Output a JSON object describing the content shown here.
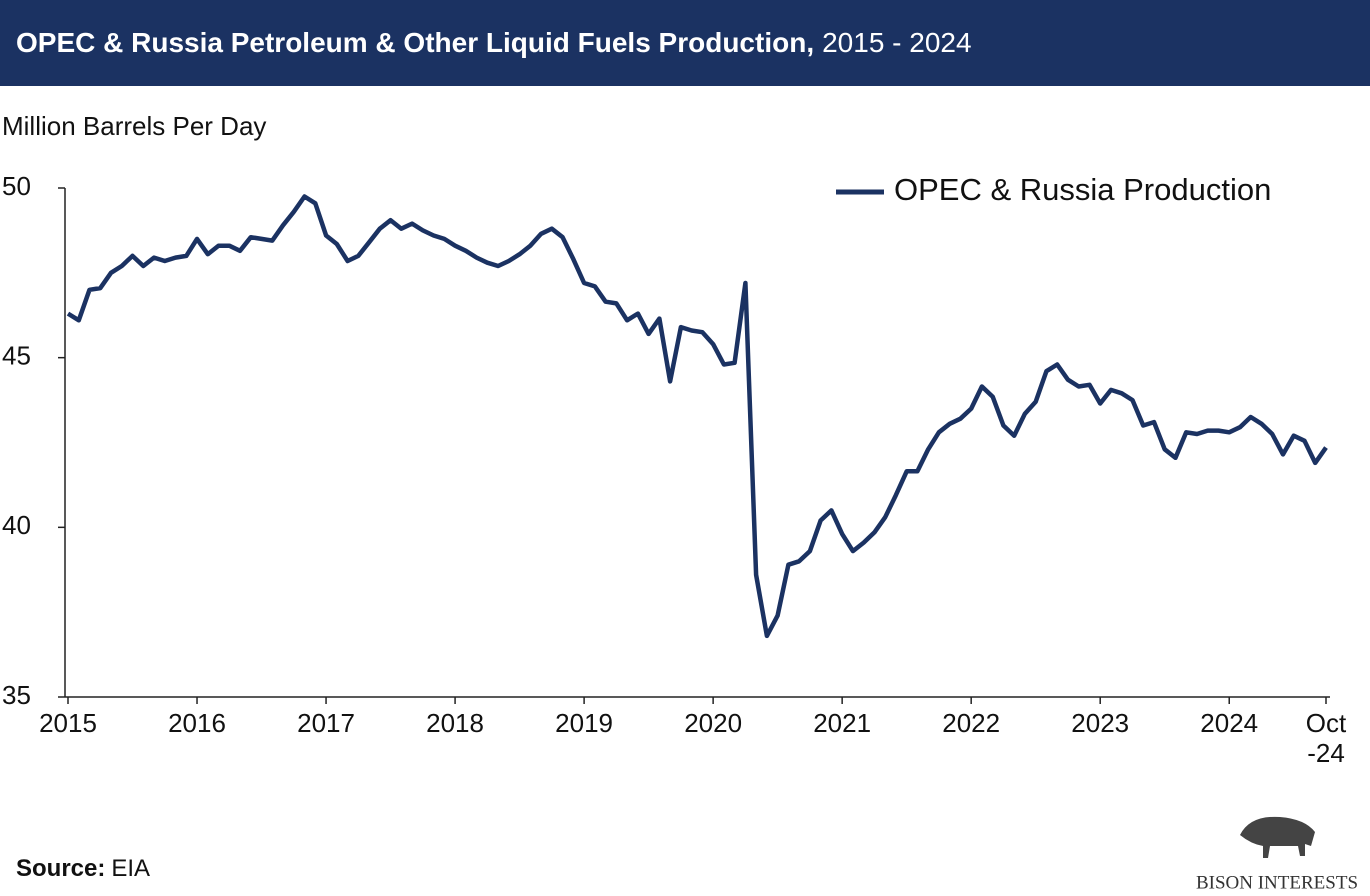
{
  "chart_data": {
    "type": "line",
    "title": "OPEC & Russia Petroleum & Other Liquid Fuels Production,",
    "subtitle": "2015 - 2024",
    "y_axis_label": "Million Barrels Per Day",
    "source_label": "Source:",
    "source": "EIA",
    "logo_text": "BISON INTERESTS",
    "categories": [
      "2015",
      null,
      null,
      null,
      null,
      null,
      null,
      null,
      null,
      null,
      null,
      null,
      "2016",
      null,
      null,
      null,
      null,
      null,
      null,
      null,
      null,
      null,
      null,
      null,
      "2017",
      null,
      null,
      null,
      null,
      null,
      null,
      null,
      null,
      null,
      null,
      null,
      "2018",
      null,
      null,
      null,
      null,
      null,
      null,
      null,
      null,
      null,
      null,
      null,
      "2019",
      null,
      null,
      null,
      null,
      null,
      null,
      null,
      null,
      null,
      null,
      null,
      "2020",
      null,
      null,
      null,
      null,
      null,
      null,
      null,
      null,
      null,
      null,
      null,
      "2021",
      null,
      null,
      null,
      null,
      null,
      null,
      null,
      null,
      null,
      null,
      null,
      "2022",
      null,
      null,
      null,
      null,
      null,
      null,
      null,
      null,
      null,
      null,
      null,
      "2023",
      null,
      null,
      null,
      null,
      null,
      null,
      null,
      null,
      null,
      null,
      null,
      "2024",
      null,
      null,
      null,
      null,
      null,
      null,
      null,
      null,
      "Oct\n-24"
    ],
    "series": [
      {
        "name": "OPEC & Russia Production",
        "color": "#1b3262",
        "values": [
          46.3,
          46.1,
          47.0,
          47.05,
          47.5,
          47.7,
          48.0,
          47.7,
          47.95,
          47.85,
          47.95,
          48.0,
          48.5,
          48.05,
          48.3,
          48.3,
          48.15,
          48.55,
          48.5,
          48.45,
          48.9,
          49.3,
          49.75,
          49.55,
          48.6,
          48.35,
          47.85,
          48.0,
          48.4,
          48.8,
          49.05,
          48.8,
          48.95,
          48.75,
          48.6,
          48.5,
          48.3,
          48.15,
          47.95,
          47.8,
          47.7,
          47.85,
          48.05,
          48.3,
          48.65,
          48.8,
          48.55,
          47.9,
          47.2,
          47.1,
          46.65,
          46.6,
          46.1,
          46.3,
          45.7,
          46.15,
          44.3,
          45.9,
          45.8,
          45.75,
          45.4,
          44.8,
          44.85,
          47.2,
          38.6,
          36.8,
          37.4,
          38.9,
          39.0,
          39.3,
          40.2,
          40.5,
          39.8,
          39.3,
          39.55,
          39.85,
          40.3,
          40.95,
          41.65,
          41.65,
          42.3,
          42.8,
          43.05,
          43.2,
          43.5,
          44.15,
          43.85,
          43.0,
          42.7,
          43.35,
          43.7,
          44.6,
          44.8,
          44.35,
          44.15,
          44.2,
          43.65,
          44.05,
          43.95,
          43.75,
          43.0,
          43.1,
          42.3,
          42.05,
          42.8,
          42.75,
          42.85,
          42.85,
          42.8,
          42.95,
          43.25,
          43.05,
          42.75,
          42.15,
          42.7,
          42.55,
          41.9,
          42.35
        ]
      }
    ],
    "ylim": [
      35,
      50
    ],
    "yticks": [
      35,
      40,
      45,
      50
    ],
    "legend": "top-right"
  }
}
